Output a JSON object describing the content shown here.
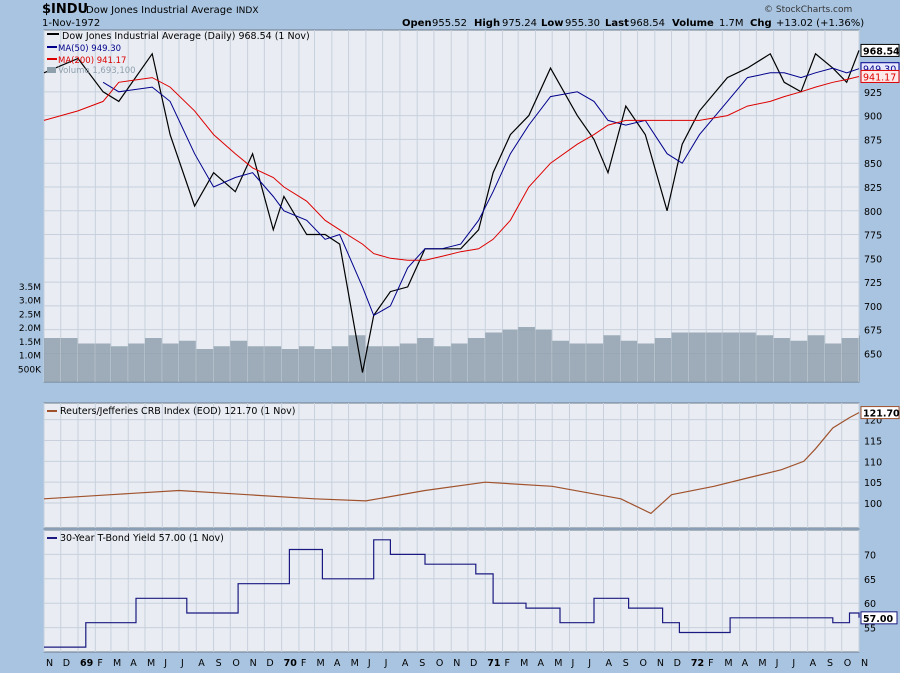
{
  "header": {
    "symbol": "$INDU",
    "name": "Dow Jones Industrial Average",
    "exchange": "INDX",
    "date": "1-Nov-1972",
    "open_label": "Open",
    "open": "955.52",
    "high_label": "High",
    "high": "975.24",
    "low_label": "Low",
    "low": "955.30",
    "last_label": "Last",
    "last": "968.54",
    "volume_label": "Volume",
    "volume": "1.7M",
    "chg_label": "Chg",
    "chg": "+13.02 (+1.36%)",
    "copyright": "© StockCharts.com"
  },
  "colors": {
    "background": "#a9c4e0",
    "panel": "#e9edf3",
    "grid": "#c7d0dc",
    "price": "#000000",
    "ma50": "#00008b",
    "ma200": "#dd0000",
    "volume": "#8fa0ad",
    "crb": "#a0522d",
    "tbond": "#1a1a80"
  },
  "legend": {
    "price": "Dow Jones Industrial Average (Daily) 968.54 (1 Nov)",
    "ma50": "MA(50) 949.30",
    "ma200": "MA(200) 941.17",
    "volume": "Volume 1,693,100"
  },
  "chart_data": [
    {
      "type": "line",
      "title": "Dow Jones Industrial Average (Daily) 968.54 (1 Nov)",
      "x": [
        "1968-11-01",
        "1969-01-01",
        "1969-02-15",
        "1969-03-15",
        "1969-05-14",
        "1969-06-15",
        "1969-07-29",
        "1969-09-01",
        "1969-10-10",
        "1969-11-10",
        "1969-12-17",
        "1970-01-05",
        "1970-02-15",
        "1970-03-20",
        "1970-04-15",
        "1970-05-26",
        "1970-06-15",
        "1970-07-15",
        "1970-08-15",
        "1970-09-15",
        "1970-10-15",
        "1970-11-18",
        "1970-12-20",
        "1971-01-15",
        "1971-02-15",
        "1971-03-20",
        "1971-04-28",
        "1971-06-15",
        "1971-07-15",
        "1971-08-09",
        "1971-09-10",
        "1971-10-15",
        "1971-11-23",
        "1971-12-20",
        "1972-01-20",
        "1972-03-10",
        "1972-04-15",
        "1972-05-26",
        "1972-06-20",
        "1972-07-20",
        "1972-08-15",
        "1972-09-15",
        "1972-10-10",
        "1972-11-01"
      ],
      "series": [
        {
          "name": "Dow Jones Industrial Average (Daily) 968.54 (1 Nov)",
          "values": [
            945,
            960,
            925,
            915,
            965,
            880,
            805,
            840,
            820,
            860,
            780,
            815,
            775,
            775,
            765,
            630,
            690,
            715,
            720,
            760,
            760,
            760,
            780,
            840,
            880,
            900,
            950,
            900,
            875,
            840,
            910,
            880,
            800,
            870,
            905,
            940,
            950,
            965,
            935,
            925,
            965,
            950,
            935,
            968.54
          ]
        },
        {
          "name": "MA(50) 949.30",
          "values": [
            null,
            null,
            935,
            925,
            930,
            915,
            860,
            825,
            835,
            840,
            815,
            800,
            790,
            770,
            775,
            720,
            690,
            700,
            740,
            760,
            760,
            765,
            790,
            820,
            860,
            890,
            920,
            925,
            915,
            895,
            890,
            895,
            860,
            850,
            880,
            915,
            940,
            945,
            945,
            940,
            945,
            950,
            945,
            949.3
          ]
        },
        {
          "name": "MA(200) 941.17",
          "values": [
            895,
            905,
            915,
            935,
            940,
            930,
            905,
            880,
            860,
            845,
            835,
            825,
            810,
            790,
            780,
            765,
            755,
            750,
            748,
            748,
            752,
            757,
            760,
            770,
            790,
            825,
            850,
            870,
            880,
            890,
            895,
            895,
            895,
            895,
            895,
            900,
            910,
            915,
            920,
            925,
            930,
            935,
            938,
            941.17
          ]
        }
      ],
      "ylim": [
        620,
        990
      ],
      "yticks": [
        650,
        675,
        700,
        725,
        750,
        775,
        800,
        825,
        850,
        875,
        900,
        925
      ],
      "price_tags": [
        "968.54",
        "949.30",
        "941.17"
      ]
    },
    {
      "type": "bar",
      "title": "Volume 1,693,100",
      "x": [
        "1968-11",
        "1968-12",
        "1969-01",
        "1969-02",
        "1969-03",
        "1969-04",
        "1969-05",
        "1969-06",
        "1969-07",
        "1969-08",
        "1969-09",
        "1969-10",
        "1969-11",
        "1969-12",
        "1970-01",
        "1970-02",
        "1970-03",
        "1970-04",
        "1970-05",
        "1970-06",
        "1970-07",
        "1970-08",
        "1970-09",
        "1970-10",
        "1970-11",
        "1970-12",
        "1971-01",
        "1971-02",
        "1971-03",
        "1971-04",
        "1971-05",
        "1971-06",
        "1971-07",
        "1971-08",
        "1971-09",
        "1971-10",
        "1971-11",
        "1971-12",
        "1972-01",
        "1972-02",
        "1972-03",
        "1972-04",
        "1972-05",
        "1972-06",
        "1972-07",
        "1972-08",
        "1972-09",
        "1972-10",
        "1972-11"
      ],
      "series": [
        {
          "name": "Volume 1,693,100",
          "values": [
            1.6,
            1.6,
            1.4,
            1.4,
            1.3,
            1.4,
            1.6,
            1.4,
            1.5,
            1.2,
            1.3,
            1.5,
            1.3,
            1.3,
            1.2,
            1.3,
            1.2,
            1.3,
            1.7,
            1.3,
            1.3,
            1.4,
            1.6,
            1.3,
            1.4,
            1.6,
            1.8,
            1.9,
            2.0,
            1.9,
            1.5,
            1.4,
            1.4,
            1.7,
            1.5,
            1.4,
            1.6,
            1.8,
            1.8,
            1.8,
            1.8,
            1.8,
            1.7,
            1.6,
            1.5,
            1.7,
            1.4,
            1.6,
            1.693
          ]
        }
      ],
      "ylim": [
        0,
        4
      ],
      "ylabel_ticks": [
        "500K",
        "1.0M",
        "1.5M",
        "2.0M",
        "2.5M",
        "3.0M",
        "3.5M"
      ]
    },
    {
      "type": "line",
      "title": "Reuters/Jefferies CRB Index (EOD) 121.70 (1 Nov)",
      "x": [
        "1968-11-01",
        "1969-03-01",
        "1969-07-01",
        "1969-11-01",
        "1970-03-01",
        "1970-06-01",
        "1970-09-15",
        "1971-01-01",
        "1971-05-01",
        "1971-09-01",
        "1971-10-25",
        "1971-12-01",
        "1972-02-15",
        "1972-04-15",
        "1972-06-15",
        "1972-07-25",
        "1972-08-15",
        "1972-09-15",
        "1972-10-15",
        "1972-11-01"
      ],
      "series": [
        {
          "name": "Reuters/Jefferies CRB Index (EOD) 121.70 (1 Nov)",
          "values": [
            101,
            102,
            103,
            102,
            101,
            100.5,
            103,
            105,
            104,
            101,
            97.5,
            102,
            104,
            106,
            108,
            110,
            113,
            118,
            120.5,
            121.7
          ]
        }
      ],
      "ylim": [
        94,
        124
      ],
      "yticks": [
        100,
        105,
        110,
        115,
        120
      ],
      "price_tag": "121.70"
    },
    {
      "type": "line",
      "title": "30-Year T-Bond Yield 57.00 (1 Nov)",
      "x": [
        "1968-11-01",
        "1969-01-15",
        "1969-04-15",
        "1969-07-15",
        "1969-10-15",
        "1970-01-15",
        "1970-03-15",
        "1970-06-15",
        "1970-07-15",
        "1970-09-15",
        "1970-12-15",
        "1971-01-15",
        "1971-03-15",
        "1971-05-15",
        "1971-07-15",
        "1971-09-15",
        "1971-11-15",
        "1971-12-15",
        "1972-03-15",
        "1972-06-15",
        "1972-09-15",
        "1972-10-15",
        "1972-11-01"
      ],
      "series": [
        {
          "name": "30-Year T-Bond Yield 57.00 (1 Nov)",
          "values": [
            51,
            56,
            61,
            58,
            64,
            71,
            65,
            73,
            70,
            68,
            66,
            60,
            59,
            56,
            61,
            59,
            56,
            54,
            57,
            57,
            56,
            58,
            57
          ]
        }
      ],
      "ylim": [
        50,
        75
      ],
      "yticks": [
        55,
        60,
        65,
        70
      ],
      "price_tag": "57.00"
    }
  ],
  "x_axis": {
    "months": [
      "N",
      "D",
      "69",
      "F",
      "M",
      "A",
      "M",
      "J",
      "J",
      "A",
      "S",
      "O",
      "N",
      "D",
      "70",
      "F",
      "M",
      "A",
      "M",
      "J",
      "J",
      "A",
      "S",
      "O",
      "N",
      "D",
      "71",
      "F",
      "M",
      "A",
      "M",
      "J",
      "J",
      "A",
      "S",
      "O",
      "N",
      "D",
      "72",
      "F",
      "M",
      "A",
      "M",
      "J",
      "J",
      "A",
      "S",
      "O",
      "N"
    ],
    "start": "1968-11-01",
    "end": "1972-11-01"
  }
}
